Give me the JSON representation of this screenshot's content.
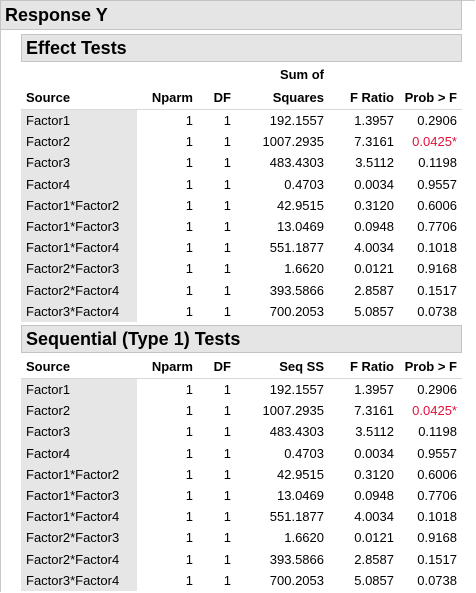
{
  "report_title": "Response Y",
  "effect_tests": {
    "title": "Effect Tests",
    "headers": {
      "source": "Source",
      "nparm": "Nparm",
      "df": "DF",
      "ss_top": "Sum of",
      "ss_bottom": "Squares",
      "f": "F Ratio",
      "p": "Prob > F"
    },
    "rows": [
      {
        "source": "Factor1",
        "nparm": "1",
        "df": "1",
        "ss": "192.1557",
        "f": "1.3957",
        "p": "0.2906",
        "sig": false
      },
      {
        "source": "Factor2",
        "nparm": "1",
        "df": "1",
        "ss": "1007.2935",
        "f": "7.3161",
        "p": "0.0425*",
        "sig": true
      },
      {
        "source": "Factor3",
        "nparm": "1",
        "df": "1",
        "ss": "483.4303",
        "f": "3.5112",
        "p": "0.1198",
        "sig": false
      },
      {
        "source": "Factor4",
        "nparm": "1",
        "df": "1",
        "ss": "0.4703",
        "f": "0.0034",
        "p": "0.9557",
        "sig": false
      },
      {
        "source": "Factor1*Factor2",
        "nparm": "1",
        "df": "1",
        "ss": "42.9515",
        "f": "0.3120",
        "p": "0.6006",
        "sig": false
      },
      {
        "source": "Factor1*Factor3",
        "nparm": "1",
        "df": "1",
        "ss": "13.0469",
        "f": "0.0948",
        "p": "0.7706",
        "sig": false
      },
      {
        "source": "Factor1*Factor4",
        "nparm": "1",
        "df": "1",
        "ss": "551.1877",
        "f": "4.0034",
        "p": "0.1018",
        "sig": false
      },
      {
        "source": "Factor2*Factor3",
        "nparm": "1",
        "df": "1",
        "ss": "1.6620",
        "f": "0.0121",
        "p": "0.9168",
        "sig": false
      },
      {
        "source": "Factor2*Factor4",
        "nparm": "1",
        "df": "1",
        "ss": "393.5866",
        "f": "2.8587",
        "p": "0.1517",
        "sig": false
      },
      {
        "source": "Factor3*Factor4",
        "nparm": "1",
        "df": "1",
        "ss": "700.2053",
        "f": "5.0857",
        "p": "0.0738",
        "sig": false
      }
    ]
  },
  "sequential_tests": {
    "title": "Sequential (Type 1) Tests",
    "headers": {
      "source": "Source",
      "nparm": "Nparm",
      "df": "DF",
      "ss": "Seq SS",
      "f": "F Ratio",
      "p": "Prob > F"
    },
    "rows": [
      {
        "source": "Factor1",
        "nparm": "1",
        "df": "1",
        "ss": "192.1557",
        "f": "1.3957",
        "p": "0.2906",
        "sig": false
      },
      {
        "source": "Factor2",
        "nparm": "1",
        "df": "1",
        "ss": "1007.2935",
        "f": "7.3161",
        "p": "0.0425*",
        "sig": true
      },
      {
        "source": "Factor3",
        "nparm": "1",
        "df": "1",
        "ss": "483.4303",
        "f": "3.5112",
        "p": "0.1198",
        "sig": false
      },
      {
        "source": "Factor4",
        "nparm": "1",
        "df": "1",
        "ss": "0.4703",
        "f": "0.0034",
        "p": "0.9557",
        "sig": false
      },
      {
        "source": "Factor1*Factor2",
        "nparm": "1",
        "df": "1",
        "ss": "42.9515",
        "f": "0.3120",
        "p": "0.6006",
        "sig": false
      },
      {
        "source": "Factor1*Factor3",
        "nparm": "1",
        "df": "1",
        "ss": "13.0469",
        "f": "0.0948",
        "p": "0.7706",
        "sig": false
      },
      {
        "source": "Factor1*Factor4",
        "nparm": "1",
        "df": "1",
        "ss": "551.1877",
        "f": "4.0034",
        "p": "0.1018",
        "sig": false
      },
      {
        "source": "Factor2*Factor3",
        "nparm": "1",
        "df": "1",
        "ss": "1.6620",
        "f": "0.0121",
        "p": "0.9168",
        "sig": false
      },
      {
        "source": "Factor2*Factor4",
        "nparm": "1",
        "df": "1",
        "ss": "393.5866",
        "f": "2.8587",
        "p": "0.1517",
        "sig": false
      },
      {
        "source": "Factor3*Factor4",
        "nparm": "1",
        "df": "1",
        "ss": "700.2053",
        "f": "5.0857",
        "p": "0.0738",
        "sig": false
      }
    ]
  },
  "colors": {
    "significant": "#e0103a",
    "header_bg": "#e5e5e5",
    "source_col_bg": "#e6e6e6"
  }
}
